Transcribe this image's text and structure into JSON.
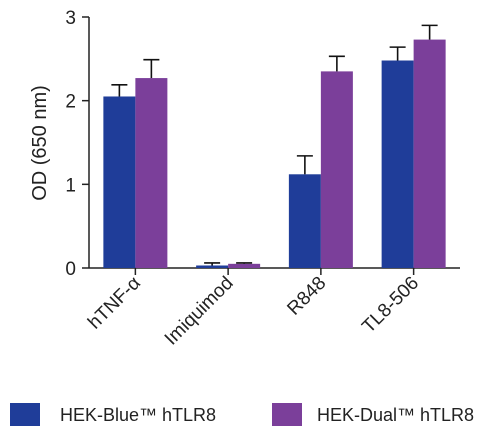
{
  "chart_data": {
    "type": "bar",
    "title": "",
    "xlabel": "",
    "ylabel": "OD (650 nm)",
    "ylim": [
      0,
      3
    ],
    "yticks": [
      "0",
      "1",
      "2",
      "3"
    ],
    "categories": [
      "hTNF-α",
      "Imiquimod",
      "R848",
      "TL8-506"
    ],
    "series": [
      {
        "name": "HEK-Blue™ hTLR8",
        "color": "#1f3d99",
        "values": [
          2.05,
          0.03,
          1.12,
          2.48
        ],
        "errors": [
          0.14,
          0.03,
          0.22,
          0.16
        ]
      },
      {
        "name": "HEK-Dual™ hTLR8",
        "color": "#7b3f9a",
        "values": [
          2.27,
          0.05,
          2.35,
          2.73
        ],
        "errors": [
          0.22,
          0.01,
          0.18,
          0.17
        ]
      }
    ],
    "error_bars": "upper",
    "legend_position": "bottom",
    "grid": false
  }
}
